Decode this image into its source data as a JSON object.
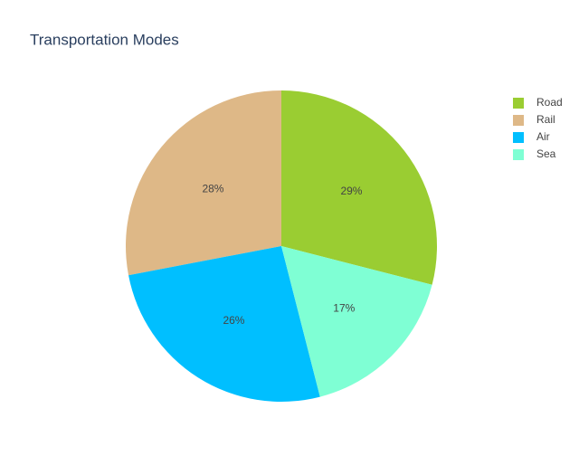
{
  "chart_data": {
    "type": "pie",
    "title": "Transportation Modes",
    "categories": [
      "Road",
      "Rail",
      "Air",
      "Sea"
    ],
    "values": [
      29,
      28,
      26,
      17
    ],
    "value_labels": [
      "29%",
      "28%",
      "26%",
      "17%"
    ],
    "colors": [
      "#9acd32",
      "#deb887",
      "#00bfff",
      "#7fffd4"
    ],
    "legend": "top-right"
  }
}
